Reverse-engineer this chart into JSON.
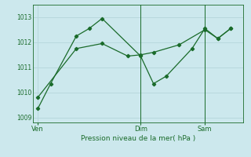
{
  "background_color": "#cce8ed",
  "grid_color": "#b8d8dd",
  "line_color": "#1a6b2a",
  "title": "Pression niveau de la mer( hPa )",
  "xtick_labels": [
    "Ven",
    "Dim",
    "Sam"
  ],
  "xtick_positions": [
    0.0,
    4.0,
    6.5
  ],
  "ylim": [
    1008.8,
    1013.5
  ],
  "yticks": [
    1009,
    1010,
    1011,
    1012,
    1013
  ],
  "series1_x": [
    0,
    0.5,
    1.5,
    2.0,
    2.5,
    4.0,
    4.5,
    5.0,
    6.0,
    6.5,
    7.0,
    7.5
  ],
  "series1_y": [
    1009.35,
    1010.35,
    1012.25,
    1012.55,
    1012.95,
    1011.45,
    1010.35,
    1010.65,
    1011.75,
    1012.55,
    1012.15,
    1012.55
  ],
  "series2_x": [
    0,
    1.5,
    2.5,
    3.5,
    4.0,
    4.5,
    5.5,
    6.5,
    7.0,
    7.5
  ],
  "series2_y": [
    1009.8,
    1011.75,
    1011.95,
    1011.45,
    1011.5,
    1011.6,
    1011.9,
    1012.5,
    1012.15,
    1012.55
  ],
  "vline_positions": [
    4.0,
    6.5
  ],
  "xmin": -0.2,
  "xmax": 8.0,
  "figwidth": 3.2,
  "figheight": 2.0,
  "dpi": 100
}
